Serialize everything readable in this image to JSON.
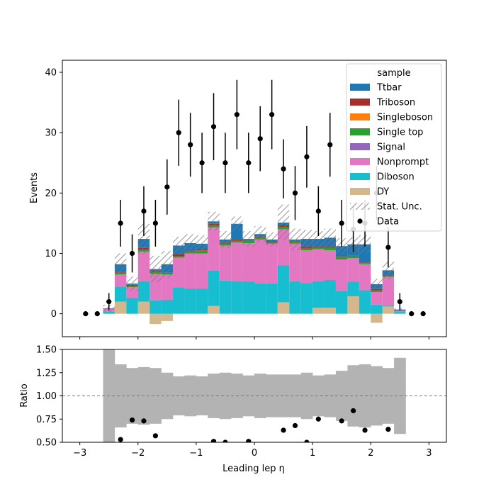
{
  "chart_data": {
    "type": "bar",
    "stacked": true,
    "xlabel": "Leading lep η",
    "ylabel": "Events",
    "ratio_ylabel": "Ratio",
    "xlim": [
      -3.3,
      3.3
    ],
    "ylim": [
      -3.8,
      42
    ],
    "ratio_ylim": [
      0.5,
      1.5
    ],
    "x_ticks": [
      "-3",
      "-2",
      "-1",
      "0",
      "1",
      "2",
      "3"
    ],
    "y_ticks": [
      "0",
      "10",
      "20",
      "30",
      "40"
    ],
    "ratio_y_ticks": [
      "0.50",
      "0.75",
      "1.00",
      "1.25",
      "1.50"
    ],
    "grid": false,
    "legend_title": "sample",
    "legend_position": "top-right",
    "bin_edges": [
      -2.6,
      -2.4,
      -2.2,
      -2.0,
      -1.8,
      -1.6,
      -1.4,
      -1.2,
      -1.0,
      -0.8,
      -0.6,
      -0.4,
      -0.2,
      0.0,
      0.2,
      0.4,
      0.6,
      0.8,
      1.0,
      1.2,
      1.4,
      1.6,
      1.8,
      2.0,
      2.2,
      2.4,
      2.6
    ],
    "series": [
      {
        "name": "DY",
        "color": "#d4b78c",
        "values": [
          0,
          2,
          0,
          2,
          -1.7,
          -1.2,
          0,
          0,
          0,
          1.3,
          0,
          0,
          0,
          0,
          0,
          1.9,
          0,
          0,
          1,
          1,
          0,
          2.9,
          0,
          -1.5,
          1.2,
          0
        ]
      },
      {
        "name": "Diboson",
        "color": "#17becf",
        "values": [
          0.4,
          2.5,
          2.6,
          3.4,
          2.2,
          2.3,
          4.4,
          4.2,
          4.2,
          5.9,
          5.5,
          5.4,
          5.3,
          5.0,
          5.0,
          6.1,
          5.4,
          5.1,
          4.4,
          4.6,
          3.8,
          2.4,
          3.9,
          1.5,
          0.2,
          0.3
        ]
      },
      {
        "name": "Nonprompt",
        "color": "#e377c2",
        "values": [
          0.4,
          2,
          1.8,
          4.9,
          4.4,
          4.2,
          4.9,
          5.8,
          5.8,
          7.1,
          5.8,
          6.4,
          6.4,
          7.3,
          6.6,
          6.0,
          6.2,
          5.4,
          5.3,
          4.9,
          5.2,
          3.9,
          4.3,
          2.1,
          4.7,
          0.2
        ]
      },
      {
        "name": "Signal",
        "color": "#9467bd",
        "values": [
          0,
          0,
          0,
          0,
          0,
          0,
          0,
          0,
          0,
          0,
          0,
          0,
          0,
          0,
          0,
          0,
          0,
          0,
          0,
          0,
          0,
          0,
          0,
          0,
          0,
          0
        ]
      },
      {
        "name": "Single top",
        "color": "#2ca02c",
        "values": [
          0,
          0.3,
          0.2,
          0.3,
          0.4,
          0.2,
          0.2,
          0.3,
          0.5,
          0.3,
          0.3,
          0.3,
          0.4,
          0.3,
          0.2,
          0.4,
          0.4,
          0.3,
          0.3,
          0.4,
          0.4,
          0.3,
          0.2,
          0.3,
          0.2,
          0
        ]
      },
      {
        "name": "Singleboson",
        "color": "#ff7f0e",
        "values": [
          0,
          0,
          0,
          0,
          0,
          0,
          0,
          0,
          0,
          0,
          0,
          0,
          0,
          0,
          0,
          0,
          0,
          0,
          0,
          0,
          0,
          0,
          0,
          0,
          0,
          0
        ]
      },
      {
        "name": "Triboson",
        "color": "#aa2d2d",
        "values": [
          0,
          0.1,
          0.2,
          0.3,
          0.2,
          0.1,
          0.4,
          0.1,
          0.2,
          0.3,
          0.2,
          0.2,
          0.1,
          0.2,
          0.2,
          0.3,
          0.1,
          0.3,
          0.2,
          0.2,
          0.1,
          0.1,
          0.1,
          0.2,
          0.1,
          0
        ]
      },
      {
        "name": "Ttbar",
        "color": "#1f77b4",
        "values": [
          0.1,
          1.3,
          0.2,
          1.5,
          0.2,
          1.4,
          1.4,
          1.3,
          0.9,
          0.4,
          0.5,
          2.6,
          0.2,
          0.4,
          0.3,
          0.4,
          0.2,
          1.3,
          1.2,
          1.5,
          1.7,
          1.9,
          3.0,
          0.8,
          0.8,
          0.2
        ]
      }
    ],
    "stat_unc": [
      0.6,
      1.8,
      1.2,
      2.5,
      2.2,
      2.2,
      1.5,
      1.5,
      1.4,
      1.6,
      1.4,
      1.2,
      1.3,
      1.3,
      1.2,
      3.0,
      1.8,
      1.5,
      1.3,
      1.5,
      1.3,
      1.2,
      1.5,
      0.9,
      1.5,
      0.2
    ],
    "stat_unc_label": "Stat. Unc.",
    "data_label": "Data",
    "data": {
      "x": [
        -2.9,
        -2.7,
        -2.5,
        -2.3,
        -2.1,
        -1.9,
        -1.7,
        -1.5,
        -1.3,
        -1.1,
        -0.9,
        -0.7,
        -0.5,
        -0.3,
        -0.1,
        0.1,
        0.3,
        0.5,
        0.7,
        0.9,
        1.1,
        1.3,
        1.5,
        1.7,
        1.9,
        2.1,
        2.3,
        2.5,
        2.7,
        2.9
      ],
      "y": [
        0,
        0,
        2,
        15,
        10,
        17,
        15,
        21,
        30,
        28,
        25,
        31,
        25,
        33,
        25,
        29,
        33,
        24,
        20,
        26,
        17,
        28,
        15,
        14,
        15,
        20,
        11,
        2,
        0,
        0
      ]
    },
    "ratio_data": {
      "x": [
        -2.3,
        -2.1,
        -1.9,
        -1.7,
        -0.7,
        -0.5,
        -0.1,
        0.5,
        0.7,
        0.9,
        1.1,
        1.5,
        1.7,
        1.9,
        2.3
      ],
      "y": [
        0.53,
        0.74,
        0.73,
        0.57,
        0.51,
        0.5,
        0.51,
        0.63,
        0.68,
        0.5,
        0.75,
        0.73,
        0.84,
        0.63,
        0.64
      ]
    },
    "ratio_unc": [
      0.5,
      0.34,
      0.3,
      0.31,
      0.3,
      0.25,
      0.21,
      0.22,
      0.21,
      0.24,
      0.25,
      0.24,
      0.22,
      0.24,
      0.23,
      0.23,
      0.23,
      0.25,
      0.22,
      0.23,
      0.27,
      0.33,
      0.34,
      0.32,
      0.3,
      0.41
    ]
  }
}
